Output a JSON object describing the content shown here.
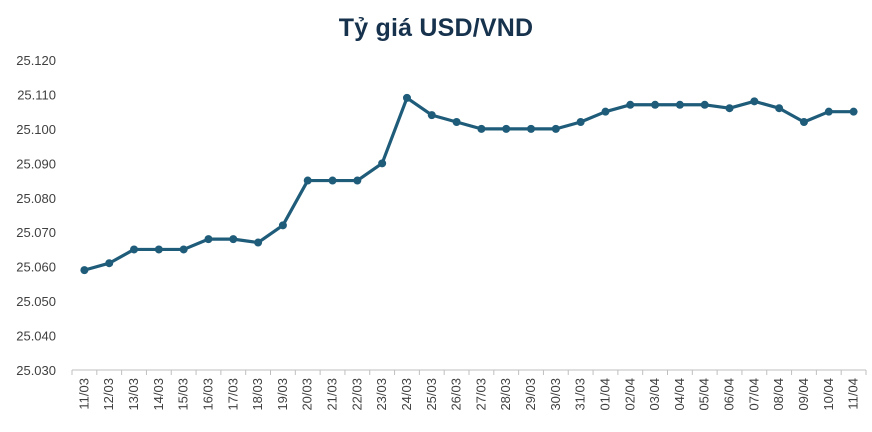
{
  "chart_data": {
    "type": "line",
    "title": "Tỷ giá USD/VND",
    "xlabel": "",
    "ylabel": "",
    "ylim": [
      25030,
      25120
    ],
    "yticks": [
      "25.030",
      "25.040",
      "25.050",
      "25.060",
      "25.070",
      "25.080",
      "25.090",
      "25.100",
      "25.110",
      "25.120"
    ],
    "grid": false,
    "line_color": "#1f5c7a",
    "categories": [
      "11/03",
      "12/03",
      "13/03",
      "14/03",
      "15/03",
      "16/03",
      "17/03",
      "18/03",
      "19/03",
      "20/03",
      "21/03",
      "22/03",
      "23/03",
      "24/03",
      "25/03",
      "26/03",
      "27/03",
      "28/03",
      "29/03",
      "30/03",
      "31/03",
      "01/04",
      "02/04",
      "03/04",
      "04/04",
      "05/04",
      "06/04",
      "07/04",
      "08/04",
      "09/04",
      "10/04",
      "11/04"
    ],
    "series": [
      {
        "name": "USD/VND",
        "values": [
          25059,
          25061,
          25065,
          25065,
          25065,
          25068,
          25068,
          25067,
          25072,
          25085,
          25085,
          25085,
          25090,
          25109,
          25104,
          25102,
          25100,
          25100,
          25100,
          25100,
          25102,
          25105,
          25107,
          25107,
          25107,
          25107,
          25106,
          25108,
          25106,
          25102,
          25105,
          25105
        ]
      }
    ]
  }
}
